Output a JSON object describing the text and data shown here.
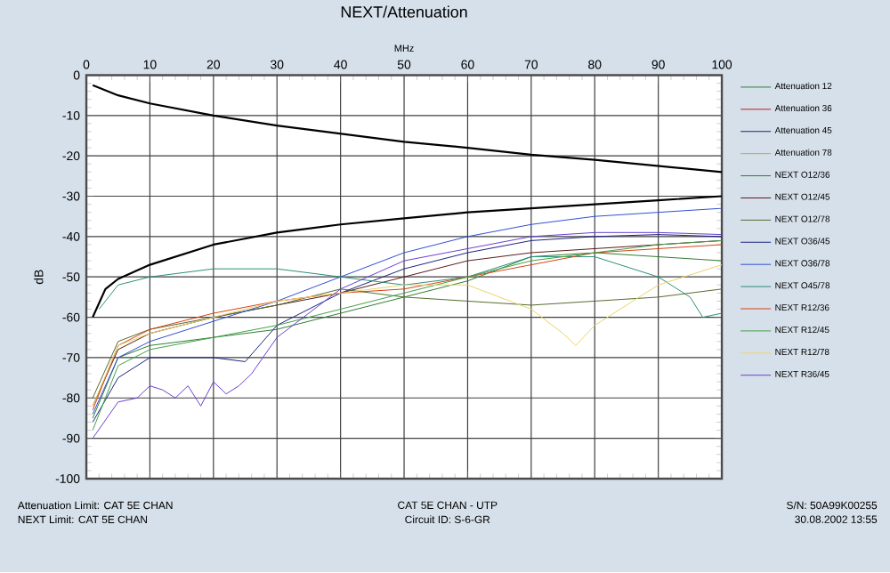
{
  "chart_data": {
    "type": "line",
    "title": "NEXT/Attenuation",
    "xlabel": "MHz",
    "ylabel": "dB",
    "xlim": [
      0,
      100
    ],
    "ylim": [
      -100,
      0
    ],
    "xticks": [
      0,
      10,
      20,
      30,
      40,
      50,
      60,
      70,
      80,
      90,
      100
    ],
    "yticks": [
      -100,
      -90,
      -80,
      -70,
      -60,
      -50,
      -40,
      -30,
      -20,
      -10,
      0
    ],
    "grid": true,
    "legend": "right",
    "marker": "none",
    "line_style": "solid",
    "annotations": [
      "Attenuation Limit: CAT 5E CHAN",
      "NEXT Limit: CAT 5E CHAN",
      "CAT 5E CHAN - UTP",
      "Circuit ID: S-6-GR",
      "S/N: 50A99K00255",
      "30.08.2002 13:55"
    ],
    "series": [
      {
        "color": "#000000",
        "x": [
          1,
          5,
          10,
          20,
          30,
          40,
          50,
          60,
          70,
          80,
          90,
          100
        ],
        "values": [
          -2.5,
          -5,
          -7,
          -10,
          -12.5,
          -14.5,
          -16.5,
          -18,
          -19.7,
          -21,
          -22.5,
          -24
        ]
      },
      {
        "color": "#000000",
        "x": [
          1,
          3,
          5,
          10,
          20,
          30,
          40,
          50,
          60,
          70,
          80,
          90,
          100
        ],
        "values": [
          -60,
          -53,
          -50.5,
          -47,
          -42,
          -39,
          -37,
          -35.5,
          -34,
          -33,
          -32,
          -31,
          -30
        ]
      },
      {
        "name": "Attenuation 12",
        "color": "#2e7d32"
      },
      {
        "name": "Attenuation 36",
        "color": "#b71c1c"
      },
      {
        "name": "Attenuation 45",
        "color": "#1a237e"
      },
      {
        "name": "Attenuation 78",
        "color": "#c8a640"
      },
      {
        "name": "NEXT O12/36",
        "color": "#2e7d32",
        "x": [
          1,
          5,
          10,
          20,
          30,
          40,
          50,
          60,
          70,
          80,
          90,
          100
        ],
        "values": [
          -85,
          -70,
          -67,
          -65,
          -63,
          -59,
          -55,
          -51,
          -45,
          -44,
          -45,
          -46
        ]
      },
      {
        "name": "NEXT O12/45",
        "color": "#5a1a1a",
        "x": [
          1,
          5,
          10,
          20,
          30,
          40,
          50,
          60,
          70,
          80,
          90,
          100
        ],
        "values": [
          -82,
          -68,
          -64,
          -60,
          -57,
          -54,
          -50,
          -46,
          -44,
          -43,
          -42,
          -41
        ]
      },
      {
        "name": "NEXT O12/78",
        "color": "#556b2f",
        "x": [
          1,
          5,
          10,
          20,
          30,
          40,
          50,
          60,
          70,
          80,
          90,
          100
        ],
        "values": [
          -80,
          -66,
          -63,
          -60,
          -57,
          -53,
          -55,
          -56,
          -57,
          -56,
          -55,
          -53
        ]
      },
      {
        "name": "NEXT O36/45",
        "color": "#1a237e",
        "x": [
          1,
          5,
          10,
          15,
          20,
          25,
          30,
          40,
          50,
          60,
          70,
          80,
          90,
          100
        ],
        "values": [
          -86,
          -75,
          -70,
          -70,
          -70,
          -71,
          -62,
          -54,
          -48,
          -44,
          -41,
          -40,
          -39.5,
          -40
        ]
      },
      {
        "name": "NEXT O36/78",
        "color": "#2f4fd0",
        "x": [
          1,
          5,
          10,
          20,
          30,
          40,
          50,
          60,
          70,
          80,
          90,
          100
        ],
        "values": [
          -84,
          -70,
          -66,
          -61,
          -56,
          -50,
          -44,
          -40,
          -37,
          -35,
          -34,
          -33
        ]
      },
      {
        "name": "NEXT O45/78",
        "color": "#2a8f7a",
        "x": [
          2,
          5,
          10,
          20,
          30,
          40,
          50,
          60,
          70,
          80,
          90,
          95,
          97,
          100
        ],
        "values": [
          -58,
          -52,
          -50,
          -48,
          -48,
          -50,
          -52,
          -50,
          -45,
          -45,
          -50,
          -55,
          -60,
          -59
        ]
      },
      {
        "name": "NEXT R12/36",
        "color": "#d84315",
        "x": [
          1,
          5,
          10,
          20,
          30,
          40,
          50,
          60,
          70,
          80,
          90,
          100
        ],
        "values": [
          -83,
          -67,
          -63,
          -59,
          -56,
          -54,
          -53,
          -50,
          -47,
          -44,
          -43,
          -42
        ]
      },
      {
        "name": "NEXT R12/45",
        "color": "#43a047",
        "x": [
          1,
          5,
          10,
          20,
          30,
          40,
          50,
          60,
          70,
          80,
          90,
          100
        ],
        "values": [
          -88,
          -72,
          -68,
          -65,
          -62,
          -58,
          -54,
          -50,
          -46,
          -44,
          -42,
          -41
        ]
      },
      {
        "name": "NEXT R12/78",
        "color": "#e8d36a",
        "x": [
          1,
          5,
          10,
          20,
          30,
          40,
          50,
          60,
          70,
          75,
          77,
          80,
          90,
          100
        ],
        "values": [
          -82,
          -67,
          -64,
          -60,
          -56,
          -54,
          -52,
          -52,
          -58,
          -64,
          -67,
          -62,
          -52,
          -47
        ]
      },
      {
        "name": "NEXT R36/45",
        "color": "#6a3fd0",
        "x": [
          1,
          5,
          8,
          10,
          12,
          14,
          16,
          18,
          20,
          22,
          24,
          26,
          30,
          35,
          40,
          50,
          60,
          70,
          80,
          90,
          100
        ],
        "values": [
          -90,
          -81,
          -80,
          -77,
          -78,
          -80,
          -77,
          -82,
          -76,
          -79,
          -77,
          -74,
          -65,
          -59,
          -53,
          -46,
          -43,
          -40,
          -39,
          -39,
          -39.5
        ]
      }
    ]
  }
}
